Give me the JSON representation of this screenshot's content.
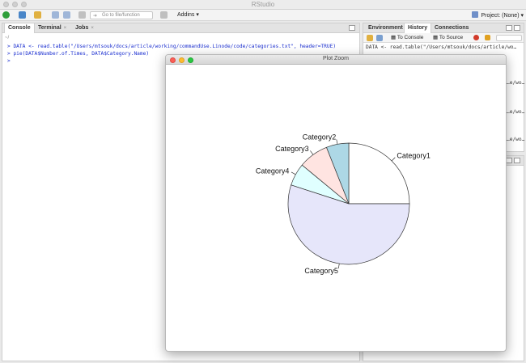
{
  "app": {
    "title": "RStudio"
  },
  "toolbar": {
    "goto_placeholder": "Go to file/function",
    "addins_label": "Addins",
    "addins_arrow": "▾",
    "project_label": "Project: (None)",
    "project_arrow": "▾"
  },
  "console_pane": {
    "tabs": [
      {
        "label": "Console"
      },
      {
        "label": "Terminal",
        "close": "×"
      },
      {
        "label": "Jobs",
        "close": "×"
      }
    ],
    "path": "~/",
    "lines": [
      "> DATA <- read.table(\"/Users/mtsouk/docs/article/working/commandUse.Linode/code/categories.txt\", header=TRUE)",
      "> pie(DATA$Number.of.Times, DATA$Category.Name)",
      "> "
    ]
  },
  "env_pane": {
    "tabs": [
      {
        "label": "Environment"
      },
      {
        "label": "History"
      },
      {
        "label": "Connections"
      }
    ],
    "to_console": "To Console",
    "to_source": "To Source",
    "history_lines": [
      "DATA <- read.table(\"/Users/mtsouk/docs/article/wo…",
      "…e/wo…",
      "…e/wo…",
      "…e/wo…"
    ]
  },
  "plot_window": {
    "title": "Plot Zoom"
  },
  "chart_data": {
    "type": "pie",
    "categories": [
      "Category1",
      "Category2",
      "Category3",
      "Category4",
      "Category5"
    ],
    "values": [
      25,
      6,
      8,
      6,
      55
    ],
    "colors": [
      "#ffffff",
      "#add8e6",
      "#ffe4e1",
      "#e0ffff",
      "#e6e6fa"
    ]
  }
}
